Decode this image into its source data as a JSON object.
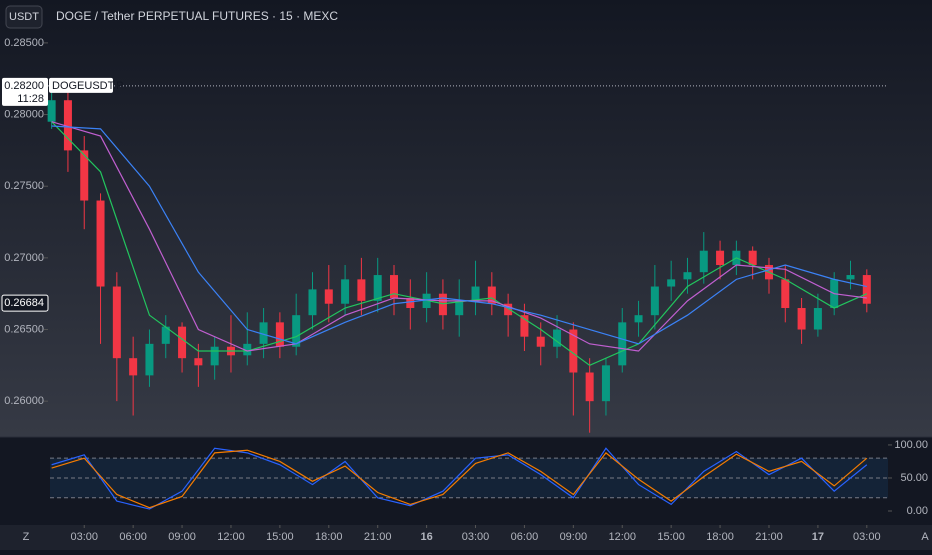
{
  "header": {
    "symbol_button": "USDT",
    "title": "DOGE / Tether PERPETUAL FUTURES · 15 · MEXC"
  },
  "footer": {
    "left": "Z",
    "right": "A"
  },
  "chart_data": [
    {
      "type": "candlestick",
      "up_color": "#089981",
      "down_color": "#f23645",
      "x": [
        1,
        2,
        3,
        4,
        5,
        6,
        7,
        8,
        9,
        10,
        11,
        12,
        13,
        14,
        15,
        16,
        17,
        18,
        19,
        20,
        21,
        22,
        23,
        24,
        25,
        26,
        27,
        28,
        29,
        30,
        31,
        32,
        33,
        34,
        35,
        36,
        37,
        38,
        39,
        40,
        41,
        42,
        43,
        44,
        45,
        46,
        47,
        48,
        49,
        50,
        51
      ],
      "open": [
        0.2795,
        0.281,
        0.2775,
        0.274,
        0.268,
        0.263,
        0.2618,
        0.264,
        0.2652,
        0.263,
        0.2625,
        0.2638,
        0.2632,
        0.264,
        0.2655,
        0.2638,
        0.266,
        0.2678,
        0.2668,
        0.2685,
        0.267,
        0.2688,
        0.2672,
        0.2665,
        0.2675,
        0.266,
        0.267,
        0.268,
        0.2668,
        0.266,
        0.2645,
        0.2638,
        0.265,
        0.262,
        0.26,
        0.2625,
        0.2655,
        0.266,
        0.268,
        0.2685,
        0.269,
        0.2705,
        0.2695,
        0.2705,
        0.2695,
        0.2685,
        0.2665,
        0.265,
        0.2665,
        0.2685,
        0.2688
      ],
      "high": [
        0.282,
        0.282,
        0.2785,
        0.2745,
        0.269,
        0.2645,
        0.265,
        0.266,
        0.2655,
        0.264,
        0.2645,
        0.266,
        0.2662,
        0.2665,
        0.2662,
        0.2675,
        0.269,
        0.2695,
        0.2695,
        0.27,
        0.27,
        0.2695,
        0.2685,
        0.269,
        0.2685,
        0.2685,
        0.2698,
        0.269,
        0.2675,
        0.2668,
        0.2655,
        0.266,
        0.2655,
        0.263,
        0.263,
        0.2665,
        0.267,
        0.2695,
        0.2698,
        0.27,
        0.2718,
        0.2712,
        0.2712,
        0.2708,
        0.27,
        0.2695,
        0.2672,
        0.2675,
        0.269,
        0.2698,
        0.2692
      ],
      "low": [
        0.279,
        0.276,
        0.272,
        0.264,
        0.26,
        0.259,
        0.261,
        0.263,
        0.262,
        0.261,
        0.2615,
        0.262,
        0.2625,
        0.263,
        0.263,
        0.2632,
        0.265,
        0.2655,
        0.266,
        0.266,
        0.2662,
        0.266,
        0.265,
        0.2655,
        0.265,
        0.2645,
        0.266,
        0.266,
        0.2645,
        0.2635,
        0.2625,
        0.263,
        0.259,
        0.2578,
        0.259,
        0.262,
        0.2645,
        0.265,
        0.267,
        0.2675,
        0.2682,
        0.2685,
        0.2688,
        0.2685,
        0.2675,
        0.2655,
        0.264,
        0.2645,
        0.266,
        0.2678,
        0.2662
      ],
      "close": [
        0.281,
        0.2775,
        0.274,
        0.268,
        0.263,
        0.2618,
        0.264,
        0.2652,
        0.263,
        0.2625,
        0.2638,
        0.2632,
        0.264,
        0.2655,
        0.2638,
        0.266,
        0.2678,
        0.2668,
        0.2685,
        0.267,
        0.2688,
        0.2672,
        0.2665,
        0.2675,
        0.266,
        0.267,
        0.268,
        0.2668,
        0.266,
        0.2645,
        0.2638,
        0.265,
        0.262,
        0.26,
        0.2625,
        0.2655,
        0.266,
        0.268,
        0.2685,
        0.269,
        0.2705,
        0.2695,
        0.2705,
        0.2695,
        0.2685,
        0.2665,
        0.265,
        0.2665,
        0.2685,
        0.2688,
        0.2668
      ],
      "series": [
        {
          "color": "#22c55e",
          "x": [
            1,
            4,
            7,
            10,
            13,
            16,
            19,
            22,
            25,
            28,
            31,
            34,
            37,
            40,
            43,
            46,
            49,
            51
          ],
          "values": [
            0.2795,
            0.276,
            0.266,
            0.2635,
            0.2635,
            0.2645,
            0.2665,
            0.2675,
            0.2668,
            0.2672,
            0.265,
            0.2625,
            0.264,
            0.268,
            0.27,
            0.2685,
            0.2665,
            0.2675
          ]
        },
        {
          "color": "#c05fd0",
          "x": [
            1,
            4,
            7,
            10,
            13,
            16,
            19,
            22,
            25,
            28,
            31,
            34,
            37,
            40,
            43,
            46,
            49,
            51
          ],
          "values": [
            0.2795,
            0.2785,
            0.272,
            0.265,
            0.2635,
            0.264,
            0.266,
            0.2672,
            0.267,
            0.267,
            0.2658,
            0.264,
            0.2635,
            0.267,
            0.2695,
            0.2692,
            0.2675,
            0.2672
          ]
        },
        {
          "color": "#3b82f6",
          "x": [
            1,
            4,
            7,
            10,
            13,
            16,
            19,
            22,
            25,
            28,
            31,
            34,
            37,
            40,
            43,
            46,
            49,
            51
          ],
          "values": [
            0.2792,
            0.279,
            0.275,
            0.269,
            0.265,
            0.264,
            0.2655,
            0.2668,
            0.2672,
            0.2668,
            0.266,
            0.265,
            0.264,
            0.266,
            0.2685,
            0.2695,
            0.2685,
            0.268
          ]
        }
      ],
      "ylim": [
        0.2575,
        0.2859
      ],
      "yticks": [
        {
          "value": 0.26,
          "label": "0.26000"
        },
        {
          "value": 0.265,
          "label": "0.26500"
        },
        {
          "value": 0.27,
          "label": "0.27000"
        },
        {
          "value": 0.275,
          "label": "0.27500"
        },
        {
          "value": 0.28,
          "label": "0.28000"
        },
        {
          "value": 0.285,
          "label": "0.28500"
        }
      ],
      "xlim": [
        0.9,
        52.3
      ],
      "xticks": [
        {
          "value": 3,
          "label": "03:00"
        },
        {
          "value": 6,
          "label": "06:00"
        },
        {
          "value": 9,
          "label": "09:00"
        },
        {
          "value": 12,
          "label": "12:00"
        },
        {
          "value": 15,
          "label": "15:00"
        },
        {
          "value": 18,
          "label": "18:00"
        },
        {
          "value": 21,
          "label": "21:00"
        },
        {
          "value": 24,
          "label": "16"
        },
        {
          "value": 27,
          "label": "03:00"
        },
        {
          "value": 30,
          "label": "06:00"
        },
        {
          "value": 33,
          "label": "09:00"
        },
        {
          "value": 36,
          "label": "12:00"
        },
        {
          "value": 39,
          "label": "15:00"
        },
        {
          "value": 42,
          "label": "18:00"
        },
        {
          "value": 45,
          "label": "21:00"
        },
        {
          "value": 48,
          "label": "17"
        },
        {
          "value": 51,
          "label": "03:00"
        }
      ],
      "price_line": {
        "value": 0.282,
        "label": "0.28200"
      },
      "countdown": "11:28",
      "symbol_label": "DOGEUSDT.P",
      "last_price": 0.26684
    },
    {
      "type": "line",
      "x": [
        1,
        3,
        5,
        7,
        9,
        11,
        13,
        15,
        17,
        19,
        21,
        23,
        25,
        27,
        29,
        31,
        33,
        35,
        37,
        39,
        41,
        43,
        45,
        47,
        49,
        51
      ],
      "series": [
        {
          "color": "#2962ff",
          "values": [
            70,
            85,
            15,
            3,
            30,
            95,
            88,
            70,
            40,
            75,
            20,
            8,
            30,
            80,
            85,
            55,
            20,
            95,
            40,
            10,
            60,
            90,
            55,
            80,
            30,
            70
          ]
        },
        {
          "color": "#f57c00",
          "values": [
            65,
            80,
            25,
            5,
            22,
            88,
            92,
            75,
            45,
            68,
            28,
            10,
            25,
            72,
            88,
            60,
            25,
            88,
            48,
            15,
            52,
            86,
            60,
            75,
            38,
            80
          ]
        }
      ],
      "ylim": [
        -13.6,
        112
      ],
      "yticks": [
        {
          "value": 0,
          "label": "0.00"
        },
        {
          "value": 50,
          "label": "50.00"
        },
        {
          "value": 100,
          "label": "100.00"
        }
      ],
      "levels": [
        20,
        50,
        80
      ]
    }
  ]
}
